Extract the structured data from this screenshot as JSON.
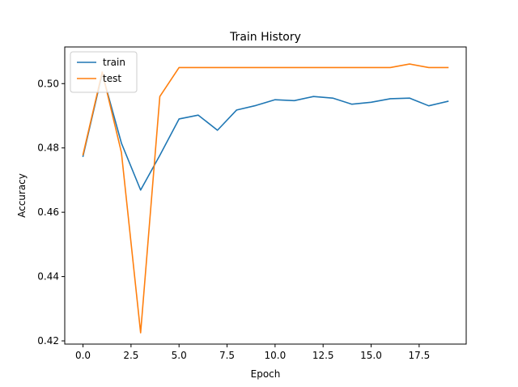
{
  "chart_data": {
    "type": "line",
    "title": "Train History",
    "xlabel": "Epoch",
    "ylabel": "Accuracy",
    "xlim": [
      -0.95,
      19.95
    ],
    "ylim": [
      0.419,
      0.5114
    ],
    "xticks": [
      0.0,
      2.5,
      5.0,
      7.5,
      10.0,
      12.5,
      15.0,
      17.5
    ],
    "xtick_labels": [
      "0.0",
      "2.5",
      "5.0",
      "7.5",
      "10.0",
      "12.5",
      "15.0",
      "17.5"
    ],
    "yticks": [
      0.42,
      0.44,
      0.46,
      0.48,
      0.5
    ],
    "ytick_labels": [
      "0.42",
      "0.44",
      "0.46",
      "0.48",
      "0.50"
    ],
    "x": [
      0,
      1,
      2,
      3,
      4,
      5,
      6,
      7,
      8,
      9,
      10,
      11,
      12,
      13,
      14,
      15,
      16,
      17,
      18,
      19
    ],
    "legend_position": "upper-left",
    "grid": false,
    "series": [
      {
        "name": "train",
        "color": "#1f77b4",
        "values": [
          0.4774,
          0.5031,
          0.4815,
          0.4669,
          0.4777,
          0.489,
          0.4902,
          0.4855,
          0.4918,
          0.4932,
          0.495,
          0.4947,
          0.496,
          0.4955,
          0.4936,
          0.4942,
          0.4953,
          0.4955,
          0.4931,
          0.4945
        ]
      },
      {
        "name": "test",
        "color": "#ff7f0e",
        "values": [
          0.4779,
          0.5036,
          0.4786,
          0.4225,
          0.496,
          0.505,
          0.505,
          0.505,
          0.505,
          0.505,
          0.505,
          0.505,
          0.505,
          0.505,
          0.505,
          0.505,
          0.505,
          0.5061,
          0.505,
          0.505
        ]
      }
    ]
  }
}
